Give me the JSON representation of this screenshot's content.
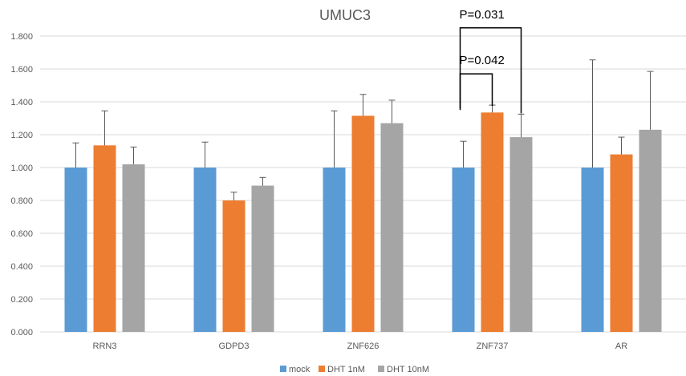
{
  "chart_data": {
    "type": "bar",
    "title": "UMUC3",
    "xlabel": "",
    "ylabel": "",
    "ylim": [
      0,
      1.8
    ],
    "y_ticks": [
      "0.000",
      "0.200",
      "0.400",
      "0.600",
      "0.800",
      "1.000",
      "1.200",
      "1.400",
      "1.600",
      "1.800"
    ],
    "categories": [
      "RRN3",
      "GDPD3",
      "ZNF626",
      "ZNF737",
      "AR"
    ],
    "series": [
      {
        "name": "mock",
        "color": "#5b9bd5",
        "values": [
          1.0,
          1.0,
          1.0,
          1.0,
          1.0
        ],
        "errors": [
          0.15,
          0.155,
          0.345,
          0.16,
          0.655
        ]
      },
      {
        "name": "DHT 1nM",
        "color": "#ed7d31",
        "values": [
          1.135,
          0.8,
          1.315,
          1.335,
          1.08
        ],
        "errors": [
          0.21,
          0.05,
          0.13,
          0.045,
          0.105
        ]
      },
      {
        "name": "DHT 10nM",
        "color": "#a5a5a5",
        "values": [
          1.02,
          0.89,
          1.27,
          1.185,
          1.23
        ],
        "errors": [
          0.105,
          0.05,
          0.14,
          0.14,
          0.355
        ]
      }
    ],
    "grid": true,
    "legend_position": "bottom",
    "annotations": [
      {
        "text": "P=0.042",
        "category": "ZNF737",
        "from_series": 0,
        "to_series": 1,
        "bracket_y": 1.57
      },
      {
        "text": "P=0.031",
        "category": "ZNF737",
        "from_series": 0,
        "to_series": 2,
        "bracket_y": 1.85
      }
    ]
  }
}
